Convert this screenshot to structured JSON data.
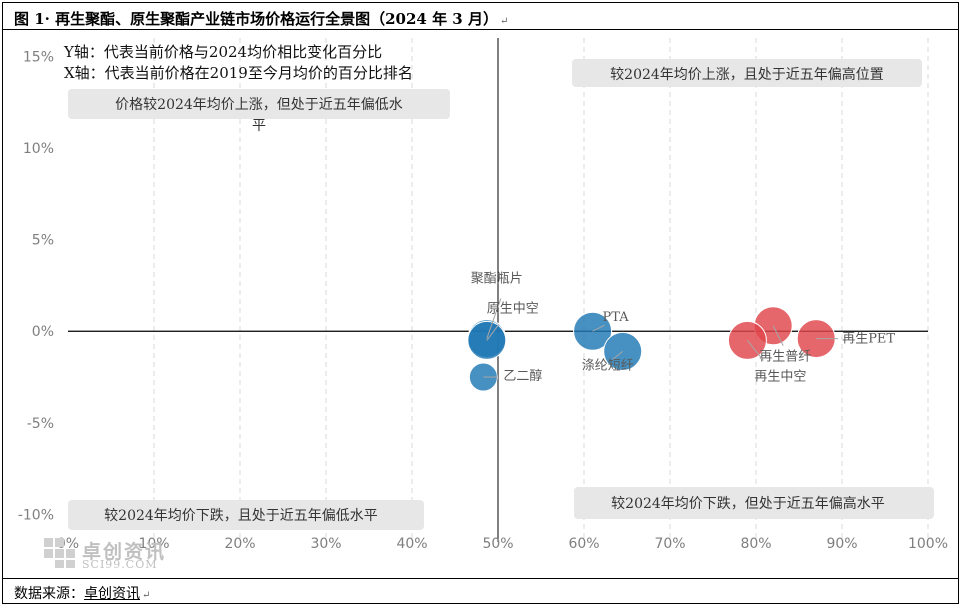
{
  "figure": {
    "title": "图 1· 再生聚酯、原生聚酯产业链市场价格运行全景图（2024 年 3 月）",
    "para_mark": "↵"
  },
  "source": {
    "label": "数据来源：",
    "value": "卓创资讯",
    "para_mark": "↵"
  },
  "watermark": {
    "name_cn": "卓创资讯",
    "name_en": "SCI99.COM"
  },
  "chart_data": {
    "type": "scatter",
    "subtype": "bubble",
    "notes": [
      "Y轴：代表当前价格与2024均价相比变化百分比",
      "X轴：代表当前价格在2019至今月均价的百分比排名"
    ],
    "x_ticks": [
      "0%",
      "10%",
      "20%",
      "30%",
      "40%",
      "50%",
      "60%",
      "70%",
      "80%",
      "90%",
      "100%"
    ],
    "y_ticks": [
      "15%",
      "10%",
      "5%",
      "0%",
      "-5%",
      "-10%"
    ],
    "xlim": [
      0,
      100
    ],
    "ylim": [
      -11.5,
      16
    ],
    "x_unit": "%",
    "y_unit": "%",
    "grid": true,
    "quadrant_labels": {
      "top_right": "较2024年均价上涨，且处于近五年偏高位置",
      "top_left_line1": "价格较2024年均价上涨，但处于近五年偏低水",
      "top_left_line2": "平",
      "bottom_left": "较2024年均价下跌，且处于近五年偏低水平",
      "bottom_right": "较2024年均价下跌，但处于近五年偏高水平"
    },
    "colors": {
      "virgin": "#1f77b4",
      "recycled": "#e0454a"
    },
    "series": [
      {
        "name": "",
        "color": "#1f77b4",
        "points": [
          {
            "label": "聚酯瓶片",
            "x": 48.7,
            "y": -0.4
          },
          {
            "label": "原生中空",
            "x": 48.7,
            "y": -0.5
          },
          {
            "label": "PTA",
            "x": 61,
            "y": 0
          },
          {
            "label": "涤纶短纤",
            "x": 64.5,
            "y": -1.1
          },
          {
            "label": "乙二醇",
            "x": 48.3,
            "y": -2.5
          }
        ]
      },
      {
        "name": "",
        "color": "#e0454a",
        "points": [
          {
            "label": "再生普纤",
            "x": 82,
            "y": 0.3
          },
          {
            "label": "再生中空",
            "x": 79,
            "y": -0.5
          },
          {
            "label": "再生PET",
            "x": 87,
            "y": -0.4
          }
        ]
      }
    ]
  }
}
